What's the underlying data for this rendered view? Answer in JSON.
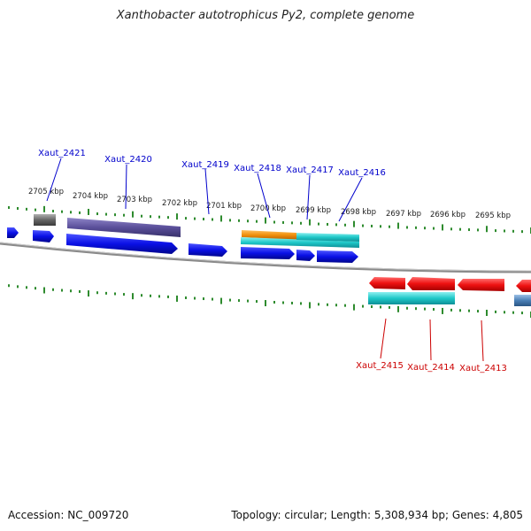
{
  "title": "Xanthobacter autotrophicus Py2, complete genome",
  "footer": {
    "accession": "Accession: NC_009720",
    "summary": "Topology: circular; Length: 5,308,934 bp; Genes: 4,805"
  },
  "scale_unit": "kbp",
  "scale_labels": [
    "2705 kbp",
    "2704 kbp",
    "2703 kbp",
    "2702 kbp",
    "2701 kbp",
    "2700 kbp",
    "2699 kbp",
    "2698 kbp",
    "2697 kbp",
    "2696 kbp",
    "2695 kbp"
  ],
  "colors": {
    "forward_label": "#0000cc",
    "reverse_label": "#cc0000",
    "forward_gene": "#0a10e6",
    "reverse_gene": "#ee1111",
    "tick": "#2e8b2e",
    "backbone": "#888888",
    "cyan": "#1ec8c8",
    "orange": "#f0900c",
    "purple": "#5a4f9a",
    "gray": "#666666",
    "steel": "#4a7fb5"
  },
  "forward_labels": [
    "Xaut_2421",
    "Xaut_2420",
    "Xaut_2419",
    "Xaut_2418",
    "Xaut_2417",
    "Xaut_2416"
  ],
  "reverse_labels": [
    "Xaut_2415",
    "Xaut_2414",
    "Xaut_2413"
  ]
}
